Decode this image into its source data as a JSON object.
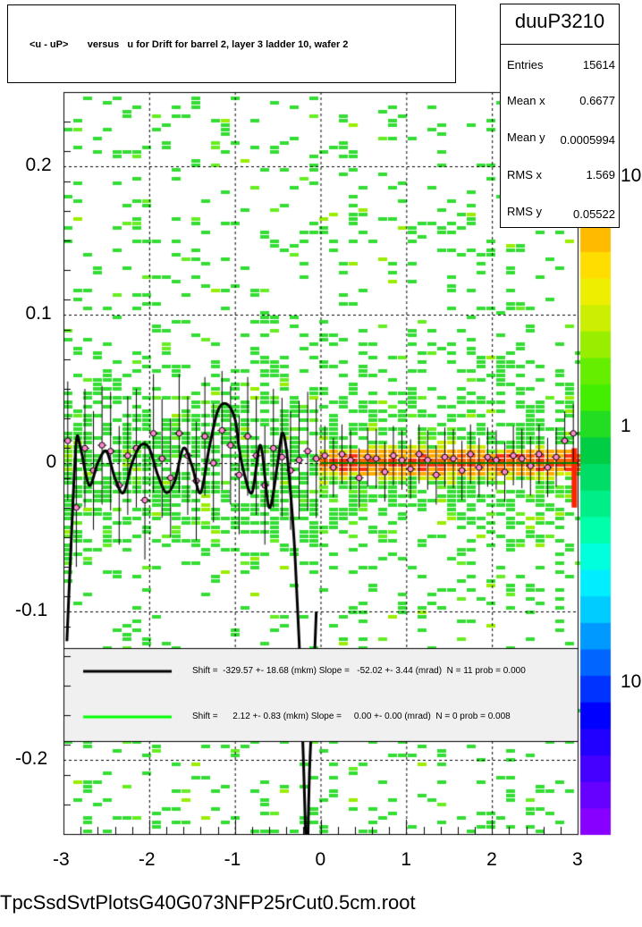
{
  "title": "<u - uP>       versus   u for Drift for barrel 2, layer 3 ladder 10, wafer 2",
  "stats": {
    "name": "duuP3210",
    "rows": [
      {
        "label": "Entries",
        "value": "15614"
      },
      {
        "label": "Mean x",
        "value": "0.6677"
      },
      {
        "label": "Mean y",
        "value": "0.0005994"
      },
      {
        "label": "RMS x",
        "value": "1.569"
      },
      {
        "label": "RMS y",
        "value": "0.05522"
      }
    ]
  },
  "footer": "TpcSsdSvtPlotsG40G073NFP25rCut0.5cm.root",
  "colors": {
    "fit_black": "#000000",
    "fit_green": "#00ff00",
    "points": "#ff88cc",
    "legend_bg": "#f0f0f0"
  },
  "chart_data": {
    "type": "heatmap",
    "xlim": [
      -3,
      3
    ],
    "ylim": [
      -0.25,
      0.25
    ],
    "x_ticks": [
      "-3",
      "-2",
      "-1",
      "0",
      "1",
      "2",
      "3"
    ],
    "y_ticks": [
      "-0.2",
      "-0.1",
      "0",
      "0.1",
      "0.2"
    ],
    "grid": true,
    "z_scale": "log",
    "z_ticks": [
      "10",
      "1",
      "10"
    ],
    "legend_position": "bottom",
    "legend": [
      {
        "color": "#000000",
        "text": "Shift =  -329.57 +- 18.68 (mkm) Slope =   -52.02 +- 3.44 (mrad)  N = 11 prob = 0.000"
      },
      {
        "color": "#00ff00",
        "text": "Shift =      2.12 +- 0.83 (mkm) Slope =     0.00 +- 0.00 (mrad)  N = 0 prob = 0.008"
      }
    ],
    "profile_points": {
      "x": [
        -2.95,
        -2.85,
        -2.75,
        -2.65,
        -2.55,
        -2.45,
        -2.35,
        -2.25,
        -2.15,
        -2.05,
        -1.95,
        -1.85,
        -1.75,
        -1.65,
        -1.55,
        -1.45,
        -1.35,
        -1.25,
        -1.15,
        -1.05,
        -0.95,
        -0.85,
        -0.75,
        -0.65,
        -0.55,
        -0.45,
        -0.35,
        -0.25,
        -0.15,
        -0.05,
        0.05,
        0.15,
        0.25,
        0.35,
        0.45,
        0.55,
        0.65,
        0.75,
        0.85,
        0.95,
        1.05,
        1.15,
        1.25,
        1.35,
        1.45,
        1.55,
        1.65,
        1.75,
        1.85,
        1.95,
        2.05,
        2.15,
        2.25,
        2.35,
        2.45,
        2.55,
        2.65,
        2.75,
        2.85,
        2.95
      ],
      "y": [
        0.015,
        -0.03,
        0.01,
        -0.005,
        0.012,
        0.008,
        -0.015,
        0.005,
        0.01,
        -0.025,
        0.02,
        0.003,
        -0.01,
        0.02,
        0.005,
        -0.012,
        0.018,
        0.0,
        0.022,
        0.012,
        -0.008,
        0.018,
        0.005,
        -0.015,
        0.01,
        0.004,
        -0.005,
        0.002,
        0.008,
        0.003,
        0.005,
        -0.003,
        0.006,
        0.002,
        -0.01,
        0.004,
        0.003,
        -0.006,
        0.005,
        0.002,
        -0.004,
        0.006,
        0.002,
        -0.008,
        0.004,
        0.003,
        -0.005,
        0.006,
        -0.003,
        0.004,
        0.002,
        -0.006,
        0.005,
        0.003,
        -0.002,
        0.006,
        -0.003,
        0.004,
        0.015,
        0.02
      ]
    },
    "fit_black": {
      "x": [
        -2.96,
        -2.9,
        -2.85,
        -2.8,
        -2.7,
        -2.6,
        -2.5,
        -2.4,
        -2.3,
        -2.2,
        -2.1,
        -2.0,
        -1.9,
        -1.8,
        -1.7,
        -1.6,
        -1.5,
        -1.4,
        -1.3,
        -1.2,
        -1.1,
        -1.0,
        -0.95,
        -0.9,
        -0.8,
        -0.7,
        -0.6,
        -0.5,
        -0.45,
        -0.4,
        -0.35,
        -0.3,
        -0.25,
        -0.2,
        -0.17
      ],
      "y": [
        -0.12,
        -0.04,
        0.015,
        0.01,
        -0.015,
        0.0,
        0.008,
        -0.01,
        -0.02,
        0.0,
        0.012,
        0.01,
        -0.008,
        -0.02,
        -0.012,
        0.01,
        -0.002,
        -0.02,
        0.01,
        0.035,
        0.04,
        0.03,
        0.01,
        -0.005,
        -0.02,
        0.012,
        -0.03,
        0.0,
        0.02,
        0.01,
        -0.02,
        -0.06,
        -0.12,
        -0.2,
        -0.26
      ]
    },
    "fit_black_right": {
      "x": [
        -0.05,
        -0.07,
        -0.1,
        -0.13,
        -0.15
      ],
      "y": [
        -0.1,
        -0.13,
        -0.17,
        -0.21,
        -0.26
      ]
    },
    "fit_green": {
      "x": [
        0.0,
        3.0
      ],
      "y": [
        0.0,
        0.0
      ]
    }
  }
}
